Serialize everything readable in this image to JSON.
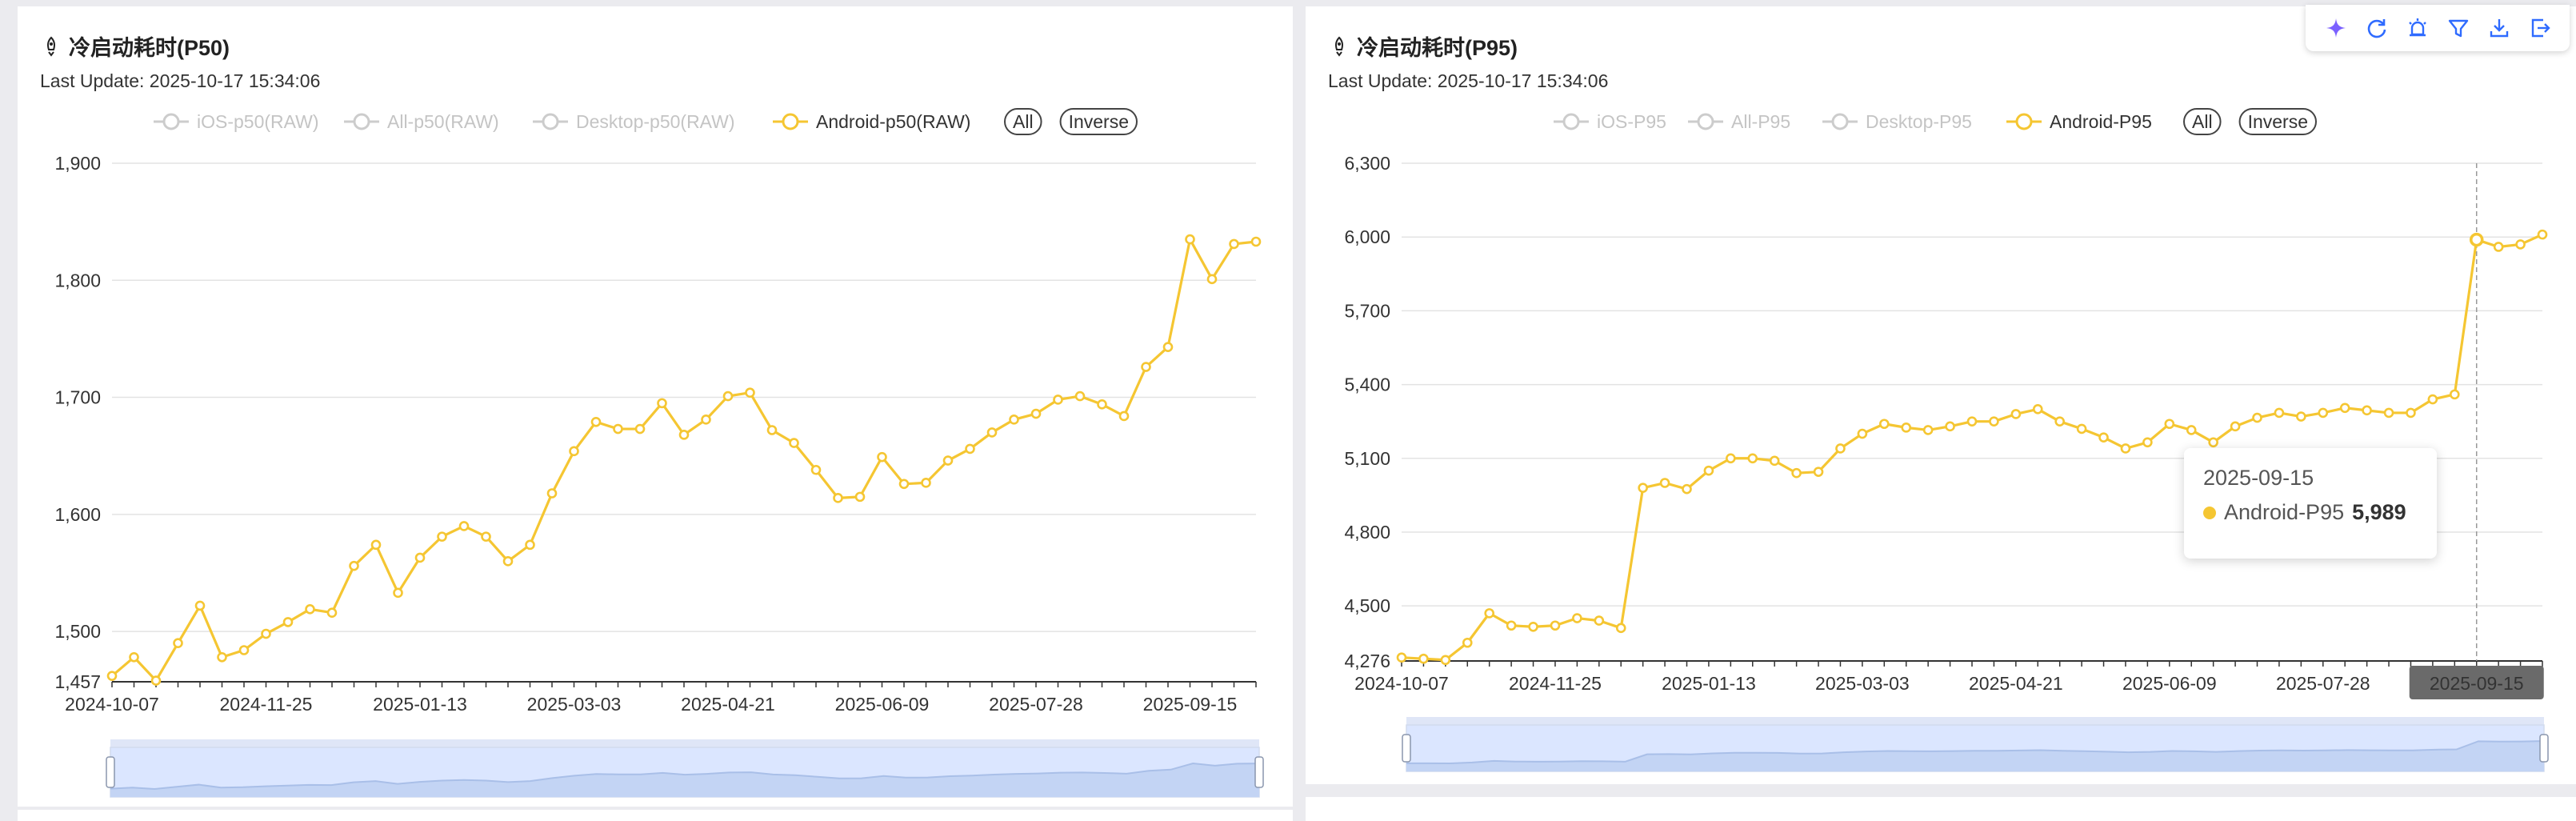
{
  "toolbar": {
    "icons": [
      "sparkle-icon",
      "refresh-icon",
      "alarm-icon",
      "filter-icon",
      "download-icon",
      "export-icon"
    ],
    "accent": "#7b61ff",
    "icon_color": "#2f6bff"
  },
  "chart_data": [
    {
      "type": "line",
      "title": "冷启动耗时(P50)",
      "subtitle": "Last Update: 2025-10-17 15:34:06",
      "legend": {
        "placement": "top-center",
        "items": [
          {
            "label": "iOS-p50(RAW)",
            "active": false
          },
          {
            "label": "All-p50(RAW)",
            "active": false
          },
          {
            "label": "Desktop-p50(RAW)",
            "active": false
          },
          {
            "label": "Android-p50(RAW)",
            "active": true
          }
        ],
        "buttons": [
          "All",
          "Inverse"
        ]
      },
      "series_color": "#f5c632",
      "inactive_color": "#cccccc",
      "ylim": [
        1457,
        1900
      ],
      "yticks": [
        1457,
        1500,
        1600,
        1700,
        1800,
        1900
      ],
      "ytick_labels": [
        "1,457",
        "1,500",
        "1,600",
        "1,700",
        "1,800",
        "1,900"
      ],
      "xticks": [
        "2024-10-07",
        "2024-11-25",
        "2025-01-13",
        "2025-03-03",
        "2025-04-21",
        "2025-06-09",
        "2025-07-28",
        "2025-09-15"
      ],
      "x": [
        "2024-10-07",
        "2024-10-14",
        "2024-10-21",
        "2024-10-28",
        "2024-11-04",
        "2024-11-11",
        "2024-11-18",
        "2024-11-25",
        "2024-12-02",
        "2024-12-09",
        "2024-12-16",
        "2024-12-23",
        "2024-12-30",
        "2025-01-06",
        "2025-01-13",
        "2025-01-20",
        "2025-01-27",
        "2025-02-03",
        "2025-02-10",
        "2025-02-17",
        "2025-02-24",
        "2025-03-03",
        "2025-03-10",
        "2025-03-17",
        "2025-03-24",
        "2025-03-31",
        "2025-04-07",
        "2025-04-14",
        "2025-04-21",
        "2025-04-28",
        "2025-05-05",
        "2025-05-12",
        "2025-05-19",
        "2025-05-26",
        "2025-06-02",
        "2025-06-09",
        "2025-06-16",
        "2025-06-23",
        "2025-06-30",
        "2025-07-07",
        "2025-07-14",
        "2025-07-21",
        "2025-07-28",
        "2025-08-04",
        "2025-08-11",
        "2025-08-18",
        "2025-08-25",
        "2025-09-01",
        "2025-09-08",
        "2025-09-15",
        "2025-09-22",
        "2025-09-29",
        "2025-10-06"
      ],
      "series": [
        {
          "name": "Android-p50(RAW)",
          "values": [
            1462,
            1478,
            1458,
            1490,
            1522,
            1478,
            1484,
            1498,
            1508,
            1519,
            1516,
            1556,
            1574,
            1533,
            1563,
            1581,
            1590,
            1581,
            1560,
            1574,
            1618,
            1654,
            1679,
            1673,
            1673,
            1695,
            1668,
            1681,
            1701,
            1704,
            1672,
            1661,
            1638,
            1614,
            1615,
            1649,
            1626,
            1627,
            1646,
            1656,
            1670,
            1681,
            1686,
            1698,
            1701,
            1694,
            1684,
            1726,
            1743,
            1835,
            1801,
            1831,
            1833
          ]
        }
      ]
    },
    {
      "type": "line",
      "title": "冷启动耗时(P95)",
      "subtitle": "Last Update: 2025-10-17 15:34:06",
      "legend": {
        "placement": "top-center",
        "items": [
          {
            "label": "iOS-P95",
            "active": false
          },
          {
            "label": "All-P95",
            "active": false
          },
          {
            "label": "Desktop-P95",
            "active": false
          },
          {
            "label": "Android-P95",
            "active": true
          }
        ],
        "buttons": [
          "All",
          "Inverse"
        ]
      },
      "series_color": "#f5c632",
      "inactive_color": "#cccccc",
      "ylim": [
        4276,
        6300
      ],
      "yticks": [
        4276,
        4500,
        4800,
        5100,
        5400,
        5700,
        6000,
        6300
      ],
      "ytick_labels": [
        "4,276",
        "4,500",
        "4,800",
        "5,100",
        "5,400",
        "5,700",
        "6,000",
        "6,300"
      ],
      "xticks": [
        "2024-10-07",
        "2024-11-25",
        "2025-01-13",
        "2025-03-03",
        "2025-04-21",
        "2025-06-09",
        "2025-07-28",
        "2025-09-15"
      ],
      "x": [
        "2024-10-07",
        "2024-10-14",
        "2024-10-21",
        "2024-10-28",
        "2024-11-04",
        "2024-11-11",
        "2024-11-18",
        "2024-11-25",
        "2024-12-02",
        "2024-12-09",
        "2024-12-16",
        "2024-12-23",
        "2024-12-30",
        "2025-01-06",
        "2025-01-13",
        "2025-01-20",
        "2025-01-27",
        "2025-02-03",
        "2025-02-10",
        "2025-02-17",
        "2025-02-24",
        "2025-03-03",
        "2025-03-10",
        "2025-03-17",
        "2025-03-24",
        "2025-03-31",
        "2025-04-07",
        "2025-04-14",
        "2025-04-21",
        "2025-04-28",
        "2025-05-05",
        "2025-05-12",
        "2025-05-19",
        "2025-05-26",
        "2025-06-02",
        "2025-06-09",
        "2025-06-16",
        "2025-06-23",
        "2025-06-30",
        "2025-07-07",
        "2025-07-14",
        "2025-07-21",
        "2025-07-28",
        "2025-08-04",
        "2025-08-11",
        "2025-08-18",
        "2025-08-25",
        "2025-09-01",
        "2025-09-08",
        "2025-09-15",
        "2025-09-22",
        "2025-09-29",
        "2025-10-06"
      ],
      "series": [
        {
          "name": "Android-P95",
          "values": [
            4290,
            4285,
            4280,
            4350,
            4470,
            4420,
            4415,
            4420,
            4450,
            4440,
            4410,
            4980,
            5000,
            4975,
            5050,
            5100,
            5100,
            5090,
            5040,
            5045,
            5140,
            5200,
            5240,
            5225,
            5215,
            5230,
            5250,
            5250,
            5280,
            5300,
            5250,
            5220,
            5185,
            5140,
            5165,
            5240,
            5215,
            5165,
            5230,
            5265,
            5285,
            5270,
            5285,
            5305,
            5295,
            5285,
            5285,
            5340,
            5360,
            5989,
            5960,
            5970,
            6010
          ]
        }
      ],
      "highlight": {
        "x": "2025-09-15"
      },
      "tooltip": {
        "date": "2025-09-15",
        "series": "Android-P95",
        "value": "5,989"
      }
    }
  ]
}
